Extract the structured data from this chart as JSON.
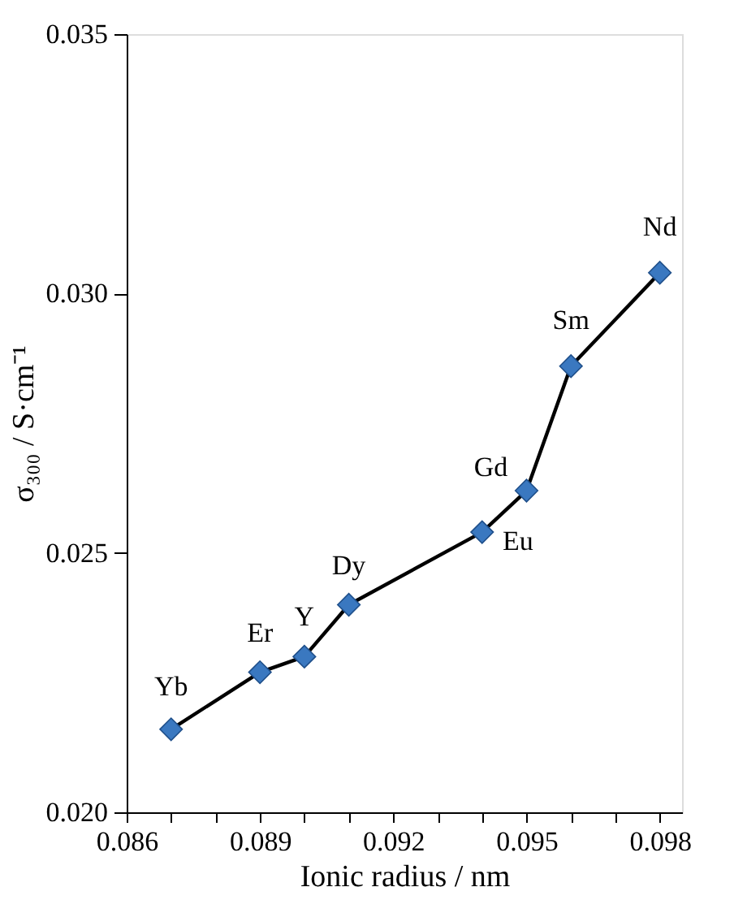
{
  "chart_data": {
    "type": "line",
    "xlabel": "Ionic radius / nm",
    "ylabel": "σ₃₀₀ / S·cm⁻¹",
    "x": [
      0.087,
      0.089,
      0.09,
      0.091,
      0.094,
      0.095,
      0.096,
      0.098
    ],
    "series": [
      {
        "color": "#3a78c0",
        "values": [
          0.0216,
          0.0227,
          0.023,
          0.024,
          0.0254,
          0.0262,
          0.0286,
          0.0304
        ]
      }
    ],
    "xlim": [
      0.086,
      0.0985
    ],
    "xticks": [
      {
        "value": 0.086,
        "label": "0.086"
      },
      {
        "value": 0.087,
        "label": null
      },
      {
        "value": 0.088,
        "label": null
      },
      {
        "value": 0.089,
        "label": "0.089"
      },
      {
        "value": 0.09,
        "label": null
      },
      {
        "value": 0.091,
        "label": null
      },
      {
        "value": 0.092,
        "label": "0.092"
      },
      {
        "value": 0.093,
        "label": null
      },
      {
        "value": 0.094,
        "label": null
      },
      {
        "value": 0.095,
        "label": "0.095"
      },
      {
        "value": 0.096,
        "label": null
      },
      {
        "value": 0.097,
        "label": null
      },
      {
        "value": 0.098,
        "label": "0.098"
      }
    ],
    "ylim": [
      0.02,
      0.035
    ],
    "yticks": [
      {
        "value": 0.02,
        "label": "0.020"
      },
      {
        "value": 0.025,
        "label": "0.025"
      },
      {
        "value": 0.03,
        "label": "0.030"
      },
      {
        "value": 0.035,
        "label": "0.035"
      }
    ],
    "marker": "diamond",
    "line_style": "solid",
    "grid": false,
    "annotations": [
      {
        "text": "Yb",
        "x": 0.087,
        "y": 0.0216
      },
      {
        "text": "Er",
        "x": 0.089,
        "y": 0.0227
      },
      {
        "text": "Y",
        "x": 0.09,
        "y": 0.023
      },
      {
        "text": "Dy",
        "x": 0.091,
        "y": 0.024
      },
      {
        "text": "Eu",
        "x": 0.094,
        "y": 0.0254
      },
      {
        "text": "Gd",
        "x": 0.095,
        "y": 0.0262
      },
      {
        "text": "Sm",
        "x": 0.096,
        "y": 0.0286
      },
      {
        "text": "Nd",
        "x": 0.098,
        "y": 0.0304
      }
    ]
  }
}
